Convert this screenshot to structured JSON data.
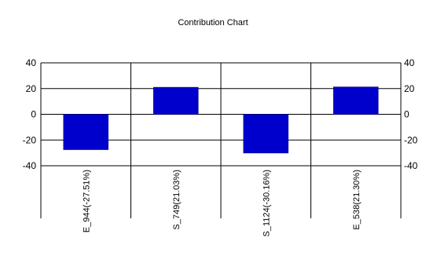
{
  "chart_data": {
    "type": "bar",
    "title": "Contribution Chart",
    "categories": [
      "E_944(-27.51%)",
      "S_749(21.03%)",
      "S_1124(-30.16%)",
      "E_538(21.30%)"
    ],
    "values": [
      -27.51,
      21.03,
      -30.16,
      21.3
    ],
    "xlabel": "",
    "ylabel": "",
    "ylim": [
      -40,
      40
    ],
    "yticks": [
      40,
      20,
      0,
      -20,
      -40
    ],
    "ytick_labels": [
      "40",
      "20",
      "0",
      "-20",
      "-40"
    ],
    "grid": true,
    "legend": "none",
    "colors": {
      "bar": "#0000CC",
      "bar_edge": "#000080",
      "grid": "#000000"
    }
  }
}
